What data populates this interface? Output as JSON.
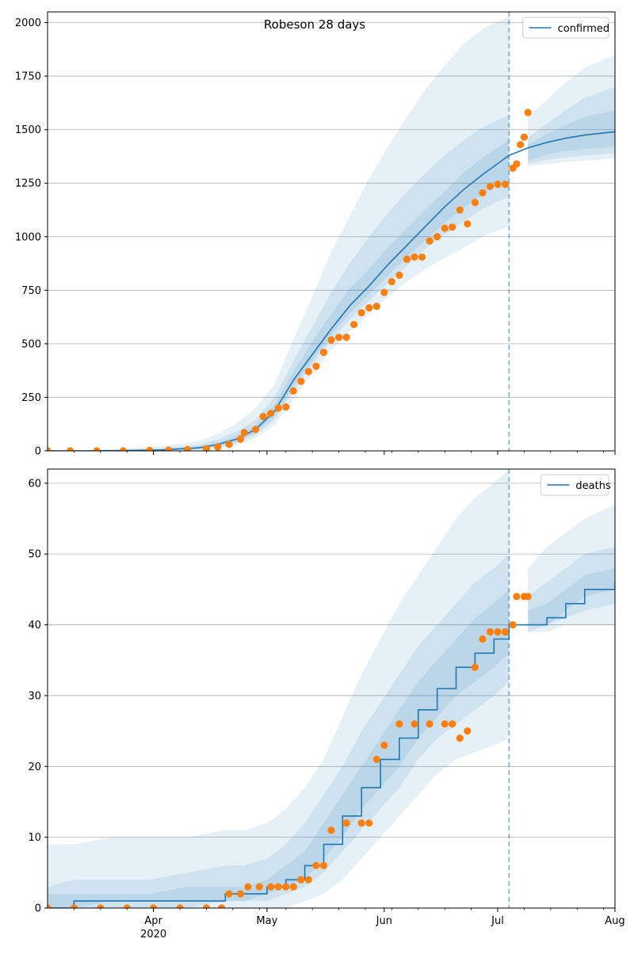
{
  "figure": {
    "title": "Robeson 28 days",
    "xaxis": {
      "range": [
        "2020-03-04",
        "2020-08-01"
      ],
      "major_ticks": [
        {
          "date": "2020-04-01",
          "label": "Apr"
        },
        {
          "date": "2020-05-01",
          "label": "May"
        },
        {
          "date": "2020-06-01",
          "label": "Jun"
        },
        {
          "date": "2020-07-01",
          "label": "Jul"
        },
        {
          "date": "2020-08-01",
          "label": "Aug"
        }
      ],
      "year_label": {
        "date": "2020-04-01",
        "label": "2020"
      },
      "minor_tick_step_days": 7
    },
    "forecast_start": "2020-07-04"
  },
  "chart_data": [
    {
      "type": "line",
      "legend": [
        "confirmed"
      ],
      "legend_position": "upper right",
      "grid": "horizontal",
      "ylim": [
        0,
        2050
      ],
      "yticks": [
        0,
        250,
        500,
        750,
        1000,
        1250,
        1500,
        1750,
        2000
      ],
      "colors": {
        "line": "#1f77b4",
        "observed": "#ff7f0e",
        "band": "#1f77b4"
      },
      "model": {
        "name": "confirmed",
        "x": [
          "2020-03-04",
          "2020-03-14",
          "2020-03-24",
          "2020-04-03",
          "2020-04-13",
          "2020-04-18",
          "2020-04-23",
          "2020-04-28",
          "2020-05-03",
          "2020-05-08",
          "2020-05-13",
          "2020-05-18",
          "2020-05-23",
          "2020-05-28",
          "2020-06-02",
          "2020-06-07",
          "2020-06-12",
          "2020-06-17",
          "2020-06-22",
          "2020-06-27",
          "2020-07-04",
          "2020-07-09",
          "2020-07-14",
          "2020-07-19",
          "2020-07-24",
          "2020-08-01"
        ],
        "y": [
          0,
          0,
          1,
          4,
          14,
          30,
          55,
          100,
          185,
          330,
          450,
          570,
          680,
          770,
          870,
          960,
          1050,
          1140,
          1220,
          1290,
          1380,
          1415,
          1440,
          1460,
          1475,
          1490
        ],
        "bands": [
          {
            "lower": [
              0,
              0,
              0,
              1,
              4,
              10,
              25,
              60,
              120,
              240,
              360,
              470,
              560,
              640,
              720,
              790,
              850,
              900,
              950,
              1000,
              1050,
              1330,
              1340,
              1350,
              1355,
              1365
            ],
            "upper": [
              2,
              4,
              10,
              22,
              45,
              80,
              130,
              200,
              310,
              520,
              720,
              930,
              1100,
              1270,
              1420,
              1560,
              1690,
              1800,
              1900,
              1970,
              2030,
              1560,
              1640,
              1720,
              1790,
              1850
            ]
          },
          {
            "lower": [
              0,
              0,
              0,
              2,
              7,
              17,
              35,
              75,
              145,
              280,
              400,
              515,
              615,
              700,
              785,
              865,
              945,
              1010,
              1070,
              1130,
              1190,
              1340,
              1360,
              1370,
              1380,
              1390
            ],
            "upper": [
              1,
              2,
              5,
              12,
              28,
              52,
              90,
              145,
              250,
              420,
              580,
              740,
              880,
              1000,
              1110,
              1210,
              1300,
              1380,
              1450,
              1510,
              1570,
              1460,
              1530,
              1590,
              1650,
              1700
            ]
          },
          {
            "lower": [
              0,
              0,
              0,
              3,
              10,
              22,
              43,
              85,
              162,
              302,
              420,
              540,
              645,
              730,
              820,
              905,
              985,
              1065,
              1135,
              1200,
              1270,
              1355,
              1385,
              1400,
              1410,
              1420
            ],
            "upper": [
              0,
              1,
              3,
              8,
              20,
              40,
              70,
              120,
              215,
              370,
              510,
              640,
              760,
              850,
              950,
              1040,
              1130,
              1210,
              1300,
              1370,
              1450,
              1430,
              1480,
              1520,
              1560,
              1590
            ]
          }
        ]
      },
      "observed": {
        "x": [
          "2020-03-04",
          "2020-03-10",
          "2020-03-17",
          "2020-03-24",
          "2020-03-31",
          "2020-04-05",
          "2020-04-10",
          "2020-04-15",
          "2020-04-18",
          "2020-04-21",
          "2020-04-24",
          "2020-04-25",
          "2020-04-28",
          "2020-04-30",
          "2020-05-02",
          "2020-05-04",
          "2020-05-06",
          "2020-05-08",
          "2020-05-10",
          "2020-05-12",
          "2020-05-14",
          "2020-05-16",
          "2020-05-18",
          "2020-05-20",
          "2020-05-22",
          "2020-05-24",
          "2020-05-26",
          "2020-05-28",
          "2020-05-30",
          "2020-06-01",
          "2020-06-03",
          "2020-06-05",
          "2020-06-07",
          "2020-06-09",
          "2020-06-11",
          "2020-06-13",
          "2020-06-15",
          "2020-06-17",
          "2020-06-19",
          "2020-06-21",
          "2020-06-23",
          "2020-06-25",
          "2020-06-27",
          "2020-06-29",
          "2020-07-01",
          "2020-07-03",
          "2020-07-05",
          "2020-07-06",
          "2020-07-07",
          "2020-07-08",
          "2020-07-09"
        ],
        "y": [
          0,
          0,
          0,
          0,
          2,
          3,
          6,
          10,
          18,
          30,
          55,
          85,
          100,
          160,
          175,
          200,
          205,
          280,
          325,
          370,
          395,
          460,
          518,
          530,
          530,
          590,
          645,
          668,
          675,
          740,
          790,
          820,
          895,
          905,
          905,
          980,
          1000,
          1040,
          1045,
          1125,
          1060,
          1160,
          1205,
          1235,
          1245,
          1245,
          1320,
          1340,
          1430,
          1465,
          1580
        ]
      }
    },
    {
      "type": "line",
      "legend": [
        "deaths"
      ],
      "legend_position": "upper right",
      "grid": "horizontal",
      "ylim": [
        0,
        62
      ],
      "yticks": [
        0,
        10,
        20,
        30,
        40,
        50,
        60
      ],
      "colors": {
        "line": "#1f77b4",
        "observed": "#ff7f0e",
        "band": "#1f77b4"
      },
      "model": {
        "name": "deaths",
        "x": [
          "2020-03-04",
          "2020-03-11",
          "2020-03-21",
          "2020-03-31",
          "2020-04-10",
          "2020-04-20",
          "2020-04-25",
          "2020-05-01",
          "2020-05-06",
          "2020-05-11",
          "2020-05-16",
          "2020-05-21",
          "2020-05-26",
          "2020-05-31",
          "2020-06-05",
          "2020-06-10",
          "2020-06-15",
          "2020-06-20",
          "2020-06-25",
          "2020-06-30",
          "2020-07-04",
          "2020-07-09",
          "2020-07-14",
          "2020-07-19",
          "2020-07-24",
          "2020-08-01"
        ],
        "y": [
          0,
          1,
          1,
          1,
          1,
          2,
          2,
          3,
          4,
          6,
          9,
          13,
          17,
          21,
          24,
          28,
          31,
          34,
          36,
          38,
          40,
          40,
          41,
          43,
          45,
          46
        ],
        "bands": [
          {
            "lower": [
              0,
              0,
              0,
              0,
              0,
              0,
              0,
              0,
              0,
              1,
              2,
              4,
              7,
              10,
              13,
              16,
              19,
              21,
              22,
              23,
              24,
              39,
              39,
              40,
              40,
              40
            ],
            "upper": [
              9,
              9,
              10,
              10,
              10,
              11,
              11,
              12,
              14,
              17,
              21,
              27,
              33,
              38,
              43,
              47,
              51,
              55,
              58,
              60,
              62,
              48,
              51,
              53,
              55,
              57
            ]
          },
          {
            "lower": [
              0,
              0,
              0,
              0,
              0,
              1,
              1,
              1,
              2,
              3,
              5,
              8,
              11,
              14,
              17,
              21,
              24,
              26,
              28,
              30,
              32,
              39,
              40,
              41,
              42,
              43
            ],
            "upper": [
              3,
              4,
              4,
              4,
              5,
              6,
              6,
              7,
              9,
              12,
              16,
              20,
              25,
              29,
              33,
              37,
              40,
              43,
              46,
              48,
              50,
              44,
              46,
              48,
              50,
              51
            ]
          },
          {
            "lower": [
              0,
              0,
              1,
              1,
              1,
              1,
              1,
              2,
              3,
              4,
              7,
              10,
              14,
              17,
              20,
              24,
              27,
              30,
              32,
              34,
              36,
              40,
              40,
              42,
              44,
              45
            ],
            "upper": [
              2,
              2,
              2,
              2,
              3,
              3,
              3,
              4,
              6,
              8,
              12,
              16,
              20,
              24,
              28,
              32,
              35,
              38,
              41,
              43,
              45,
              42,
              43,
              45,
              47,
              48
            ]
          }
        ]
      },
      "observed": {
        "x": [
          "2020-03-04",
          "2020-03-11",
          "2020-03-18",
          "2020-03-25",
          "2020-04-01",
          "2020-04-08",
          "2020-04-15",
          "2020-04-19",
          "2020-04-21",
          "2020-04-24",
          "2020-04-26",
          "2020-04-29",
          "2020-05-02",
          "2020-05-04",
          "2020-05-06",
          "2020-05-08",
          "2020-05-10",
          "2020-05-12",
          "2020-05-14",
          "2020-05-16",
          "2020-05-18",
          "2020-05-22",
          "2020-05-26",
          "2020-05-28",
          "2020-05-30",
          "2020-06-01",
          "2020-06-05",
          "2020-06-09",
          "2020-06-13",
          "2020-06-17",
          "2020-06-19",
          "2020-06-21",
          "2020-06-23",
          "2020-06-25",
          "2020-06-27",
          "2020-06-29",
          "2020-07-01",
          "2020-07-03",
          "2020-07-05",
          "2020-07-06",
          "2020-07-08",
          "2020-07-09"
        ],
        "y": [
          0,
          0,
          0,
          0,
          0,
          0,
          0,
          0,
          2,
          2,
          3,
          3,
          3,
          3,
          3,
          3,
          4,
          4,
          6,
          6,
          11,
          12,
          12,
          12,
          21,
          23,
          26,
          26,
          26,
          26,
          26,
          24,
          25,
          34,
          38,
          39,
          39,
          39,
          40,
          44,
          44,
          44
        ]
      }
    }
  ]
}
